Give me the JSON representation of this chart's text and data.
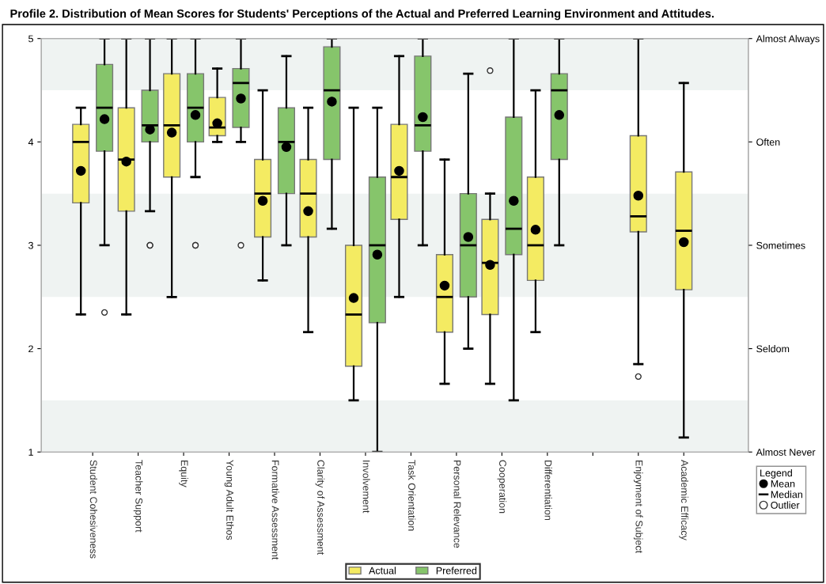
{
  "chart_data": {
    "type": "box",
    "title": "Profile 2. Distribution of Mean Scores for Students' Perceptions of the Actual and Preferred Learning Environment and Attitudes.",
    "categories": [
      "Student Cohesiveness",
      "Teacher Support",
      "Equity",
      "Young Adult Ethos",
      "Formative Assessment",
      "Clarity of Assessment",
      "Involvement",
      "Task Orientation",
      "Personal Relevance",
      "Cooperation",
      "Differentiation",
      null,
      "Enjoyment of Subject",
      "Academic Efficacy"
    ],
    "series": [
      {
        "name": "Actual",
        "color": "#f4eb62",
        "boxes": [
          {
            "low": 2.33,
            "q1": 3.41,
            "median": 4.0,
            "q3": 4.17,
            "high": 4.33,
            "mean": 3.72
          },
          {
            "low": 2.33,
            "q1": 3.33,
            "median": 3.83,
            "q3": 4.33,
            "high": 5.0,
            "mean": 3.81
          },
          {
            "low": 2.5,
            "q1": 3.66,
            "median": 4.16,
            "q3": 4.66,
            "high": 5.0,
            "mean": 4.09
          },
          {
            "low": 4.0,
            "q1": 4.06,
            "median": 4.14,
            "q3": 4.43,
            "high": 4.71,
            "mean": 4.18
          },
          {
            "low": 2.66,
            "q1": 3.08,
            "median": 3.5,
            "q3": 3.83,
            "high": 4.5,
            "mean": 3.43
          },
          {
            "low": 2.16,
            "q1": 3.08,
            "median": 3.5,
            "q3": 3.83,
            "high": 4.33,
            "mean": 3.33
          },
          {
            "low": 1.5,
            "q1": 1.83,
            "median": 2.33,
            "q3": 3.0,
            "high": 4.33,
            "mean": 2.49
          },
          {
            "low": 2.5,
            "q1": 3.25,
            "median": 3.66,
            "q3": 4.17,
            "high": 4.83,
            "mean": 3.72
          },
          {
            "low": 1.66,
            "q1": 2.16,
            "median": 2.5,
            "q3": 2.91,
            "high": 3.83,
            "mean": 2.61
          },
          {
            "low": 1.66,
            "q1": 2.33,
            "median": 2.83,
            "q3": 3.25,
            "high": 3.5,
            "mean": 2.81,
            "outliers": [
              4.69
            ]
          },
          {
            "low": 2.16,
            "q1": 2.66,
            "median": 3.0,
            "q3": 3.66,
            "high": 4.5,
            "mean": 3.15
          },
          null,
          {
            "low": 1.85,
            "q1": 3.13,
            "median": 3.28,
            "q3": 4.06,
            "high": 5.0,
            "mean": 3.48,
            "outliers": [
              1.73
            ]
          },
          {
            "low": 1.14,
            "q1": 2.57,
            "median": 3.14,
            "q3": 3.71,
            "high": 4.57,
            "mean": 3.03
          }
        ]
      },
      {
        "name": "Preferred",
        "color": "#86c56b",
        "boxes": [
          {
            "low": 3.0,
            "q1": 3.91,
            "median": 4.33,
            "q3": 4.75,
            "high": 5.0,
            "mean": 4.22,
            "outliers": [
              2.35
            ]
          },
          {
            "low": 3.33,
            "q1": 4.0,
            "median": 4.16,
            "q3": 4.5,
            "high": 5.0,
            "mean": 4.12,
            "outliers": [
              3.0,
              3.0
            ]
          },
          {
            "low": 3.66,
            "q1": 4.0,
            "median": 4.33,
            "q3": 4.66,
            "high": 5.0,
            "mean": 4.26,
            "outliers": [
              3.0,
              3.0
            ]
          },
          {
            "low": 4.0,
            "q1": 4.14,
            "median": 4.57,
            "q3": 4.71,
            "high": 5.0,
            "mean": 4.42,
            "outliers": [
              3.0
            ]
          },
          {
            "low": 3.0,
            "q1": 3.5,
            "median": 4.0,
            "q3": 4.33,
            "high": 4.83,
            "mean": 3.95
          },
          {
            "low": 3.16,
            "q1": 3.83,
            "median": 4.5,
            "q3": 4.92,
            "high": 5.0,
            "mean": 4.39
          },
          {
            "low": 1.0,
            "q1": 2.25,
            "median": 3.0,
            "q3": 3.66,
            "high": 4.33,
            "mean": 2.91
          },
          {
            "low": 3.0,
            "q1": 3.91,
            "median": 4.16,
            "q3": 4.83,
            "high": 5.0,
            "mean": 4.24
          },
          {
            "low": 2.0,
            "q1": 2.5,
            "median": 3.0,
            "q3": 3.5,
            "high": 4.66,
            "mean": 3.08
          },
          {
            "low": 1.5,
            "q1": 2.91,
            "median": 3.16,
            "q3": 4.24,
            "high": 5.0,
            "mean": 3.43
          },
          {
            "low": 3.0,
            "q1": 3.83,
            "median": 4.5,
            "q3": 4.66,
            "high": 5.0,
            "mean": 4.26
          },
          null,
          null,
          null
        ]
      }
    ],
    "ylim": [
      1,
      5
    ],
    "yticks": [
      1,
      2,
      3,
      4,
      5
    ],
    "y2_categories": [
      "Almost Always",
      "Often",
      "Sometimes",
      "Seldom",
      "Almost Never"
    ],
    "bands": [
      {
        "axis": "y",
        "from": 1,
        "to": 1.5,
        "color": "#eff3f2"
      },
      {
        "axis": "y",
        "from": 2.5,
        "to": 3.5,
        "color": "#eff3f2"
      },
      {
        "axis": "y",
        "from": 4.5,
        "to": 5,
        "color": "#eff3f2"
      }
    ],
    "legend": "bottom",
    "legend_title": "Legend",
    "annotations": [
      "Mean",
      "Median",
      "Outlier"
    ],
    "grid": false
  }
}
